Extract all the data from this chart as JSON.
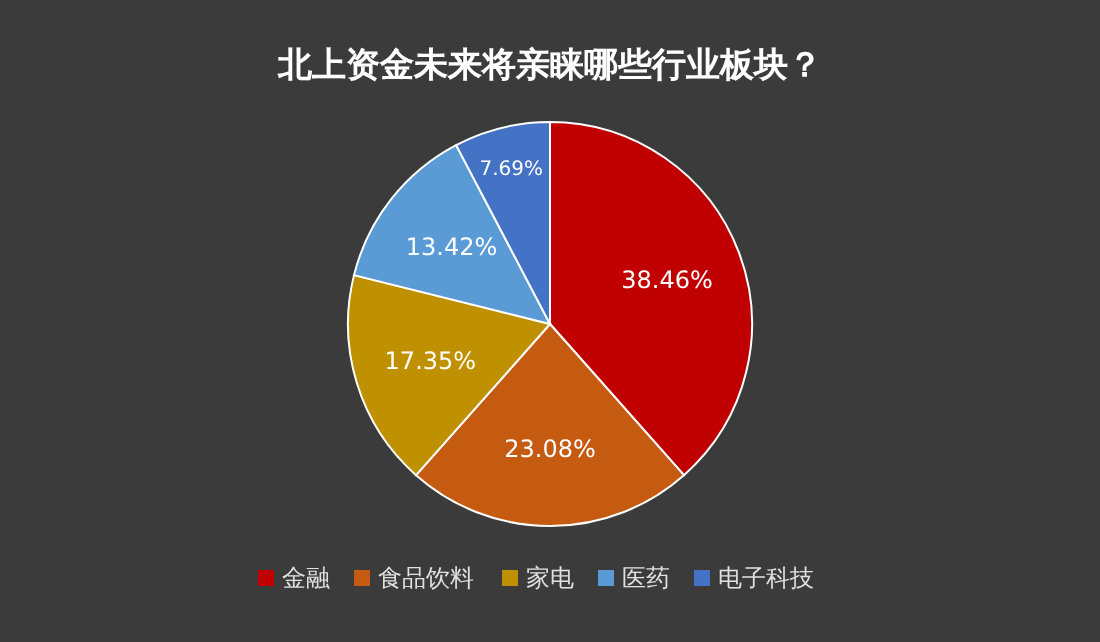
{
  "chart_data": {
    "type": "pie",
    "title": "北上资金未来将亲睐哪些行业板块？",
    "categories": [
      "金融",
      "食品饮料",
      "家电",
      "医药",
      "电子科技"
    ],
    "values": [
      38.46,
      23.08,
      17.35,
      13.42,
      7.69
    ],
    "value_labels": [
      "38.46%",
      "23.08%",
      "17.35%",
      "13.42%",
      "7.69%"
    ],
    "colors": [
      "#c00000",
      "#c55a11",
      "#bf9000",
      "#5b9bd5",
      "#4472c4"
    ],
    "legend": "bottom"
  }
}
